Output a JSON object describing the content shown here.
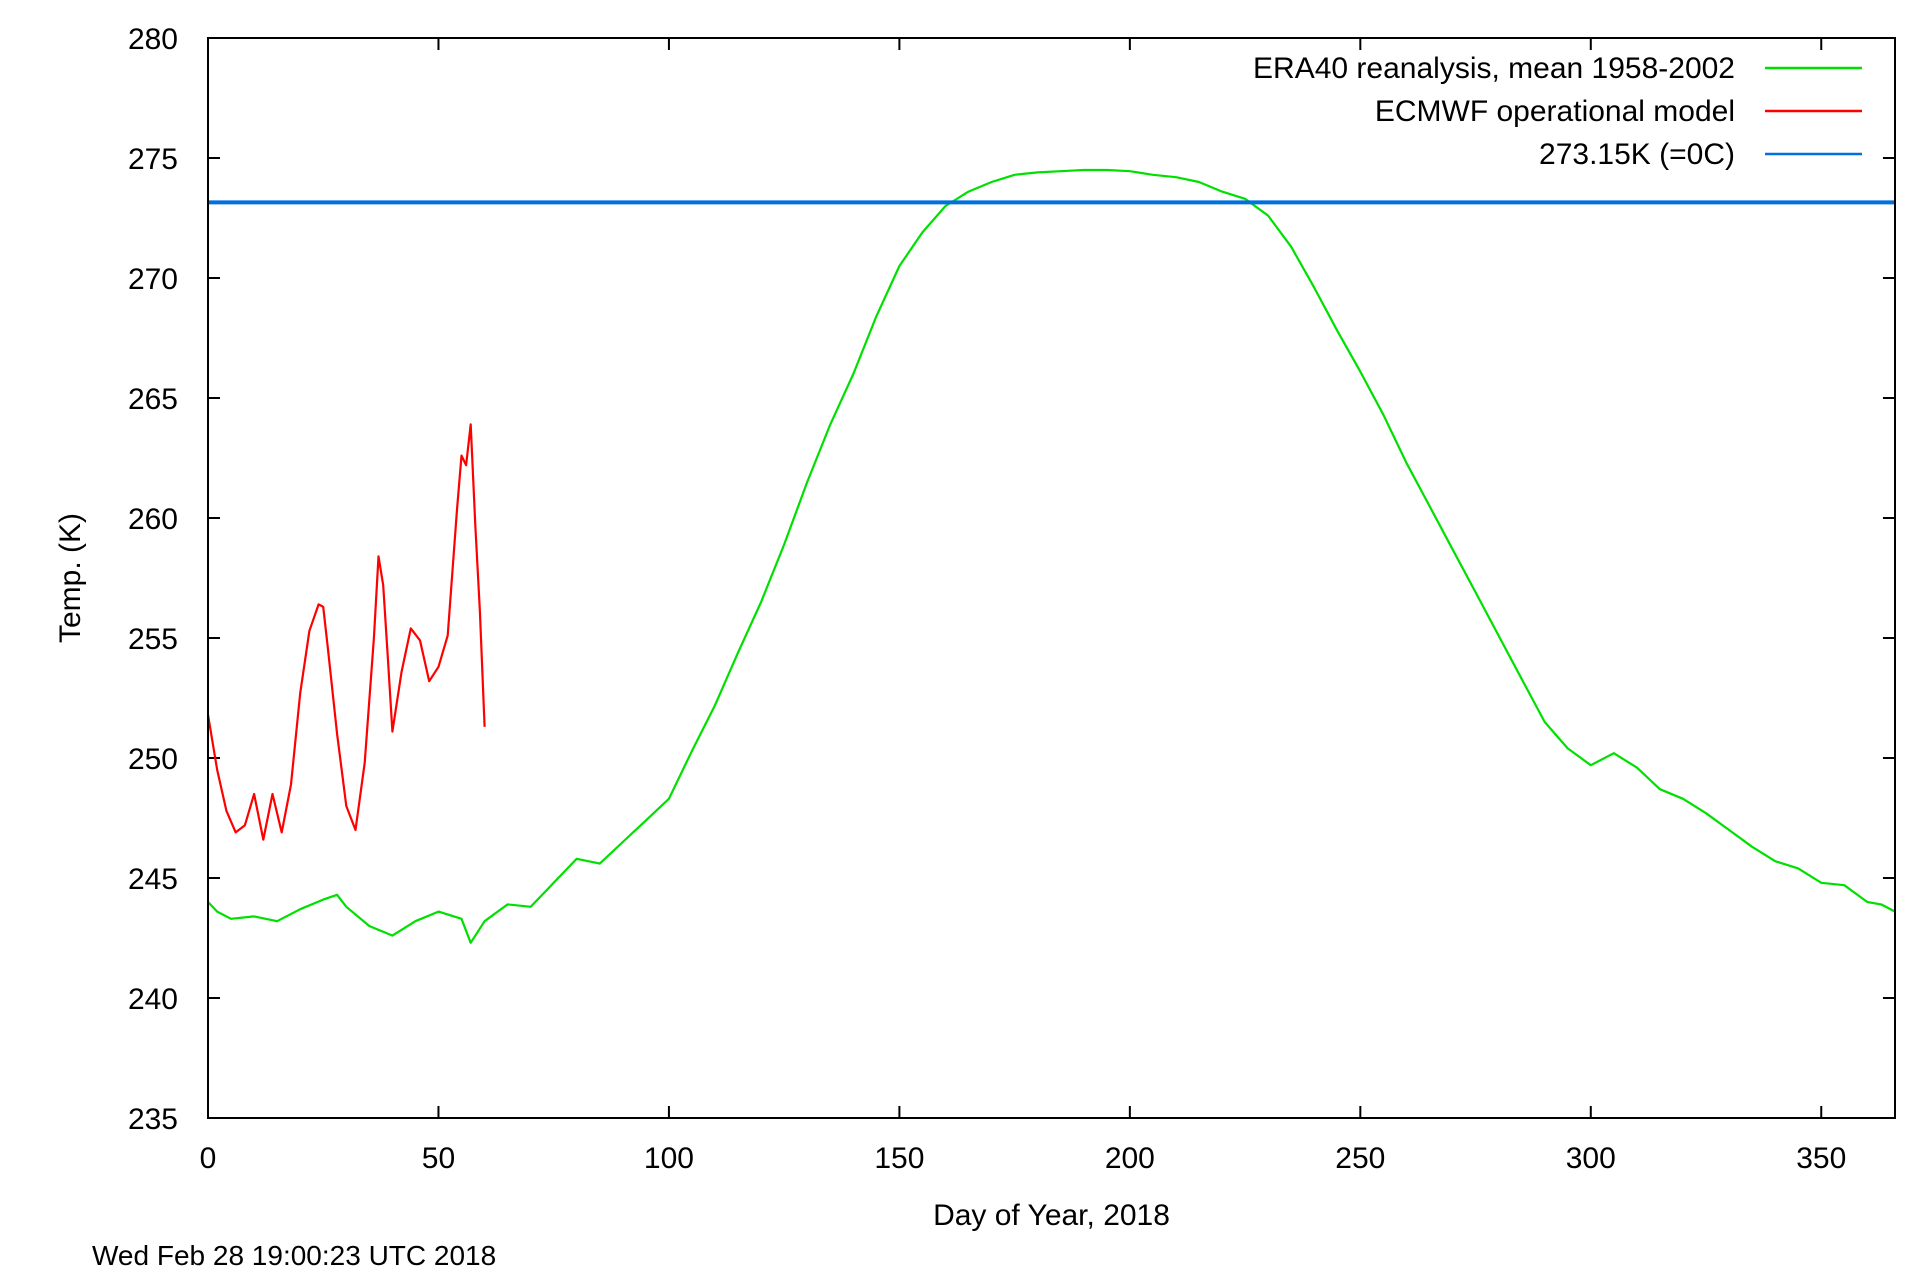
{
  "chart_data": {
    "type": "line",
    "xlabel": "Day of Year, 2018",
    "ylabel": "Temp. (K)",
    "xlim": [
      0,
      366
    ],
    "ylim": [
      235,
      280
    ],
    "xticks": [
      0,
      50,
      100,
      150,
      200,
      250,
      300,
      350
    ],
    "yticks": [
      235,
      240,
      245,
      250,
      255,
      260,
      265,
      270,
      275,
      280
    ],
    "grid": false,
    "legend_position": "top-right",
    "series": [
      {
        "name": "ERA40 reanalysis, mean 1958-2002",
        "color": "#00e000",
        "x": [
          0,
          2,
          5,
          10,
          15,
          20,
          25,
          28,
          30,
          35,
          40,
          45,
          50,
          55,
          57,
          60,
          65,
          70,
          75,
          80,
          85,
          90,
          95,
          100,
          105,
          110,
          115,
          120,
          125,
          130,
          135,
          140,
          145,
          150,
          155,
          160,
          165,
          170,
          175,
          180,
          185,
          190,
          195,
          200,
          205,
          210,
          215,
          220,
          225,
          230,
          235,
          240,
          245,
          250,
          255,
          260,
          265,
          270,
          275,
          280,
          285,
          290,
          295,
          300,
          305,
          310,
          315,
          320,
          325,
          330,
          335,
          340,
          345,
          350,
          355,
          360,
          363,
          366
        ],
        "y": [
          244.0,
          243.6,
          243.3,
          243.4,
          243.2,
          243.7,
          244.1,
          244.3,
          243.8,
          243.0,
          242.6,
          243.2,
          243.6,
          243.3,
          242.3,
          243.2,
          243.9,
          243.8,
          244.8,
          245.8,
          245.6,
          246.5,
          247.4,
          248.3,
          250.3,
          252.2,
          254.4,
          256.5,
          258.9,
          261.5,
          263.9,
          266.0,
          268.4,
          270.5,
          271.9,
          273.0,
          273.6,
          274.0,
          274.3,
          274.4,
          274.45,
          274.5,
          274.5,
          274.45,
          274.3,
          274.2,
          274.0,
          273.6,
          273.3,
          272.6,
          271.3,
          269.6,
          267.8,
          266.1,
          264.3,
          262.3,
          260.5,
          258.7,
          256.9,
          255.1,
          253.3,
          251.5,
          250.4,
          249.7,
          250.2,
          249.6,
          248.7,
          248.3,
          247.7,
          247.0,
          246.3,
          245.7,
          245.4,
          244.8,
          244.7,
          244.0,
          243.9,
          243.6
        ]
      },
      {
        "name": "ECMWF operational model",
        "color": "#ff0000",
        "x": [
          0,
          2,
          4,
          6,
          8,
          10,
          12,
          14,
          16,
          18,
          20,
          22,
          24,
          25,
          26,
          28,
          30,
          32,
          34,
          36,
          37,
          38,
          39,
          40,
          42,
          44,
          46,
          48,
          50,
          52,
          54,
          55,
          56,
          57,
          58,
          59,
          60
        ],
        "y": [
          251.8,
          249.5,
          247.8,
          246.9,
          247.2,
          248.5,
          246.6,
          248.5,
          246.9,
          248.9,
          252.7,
          255.3,
          256.4,
          256.3,
          254.6,
          251.0,
          248.0,
          247.0,
          249.8,
          255.0,
          258.4,
          257.2,
          254.2,
          251.1,
          253.6,
          255.4,
          254.9,
          253.2,
          253.8,
          255.1,
          260.3,
          262.6,
          262.2,
          263.9,
          259.7,
          256.1,
          251.3
        ]
      },
      {
        "name": "273.15K (=0C)",
        "color": "#0070e0",
        "x": [
          0,
          366
        ],
        "y": [
          273.15,
          273.15
        ]
      }
    ]
  },
  "footer": {
    "timestamp": "Wed Feb 28 19:00:23 UTC 2018"
  }
}
